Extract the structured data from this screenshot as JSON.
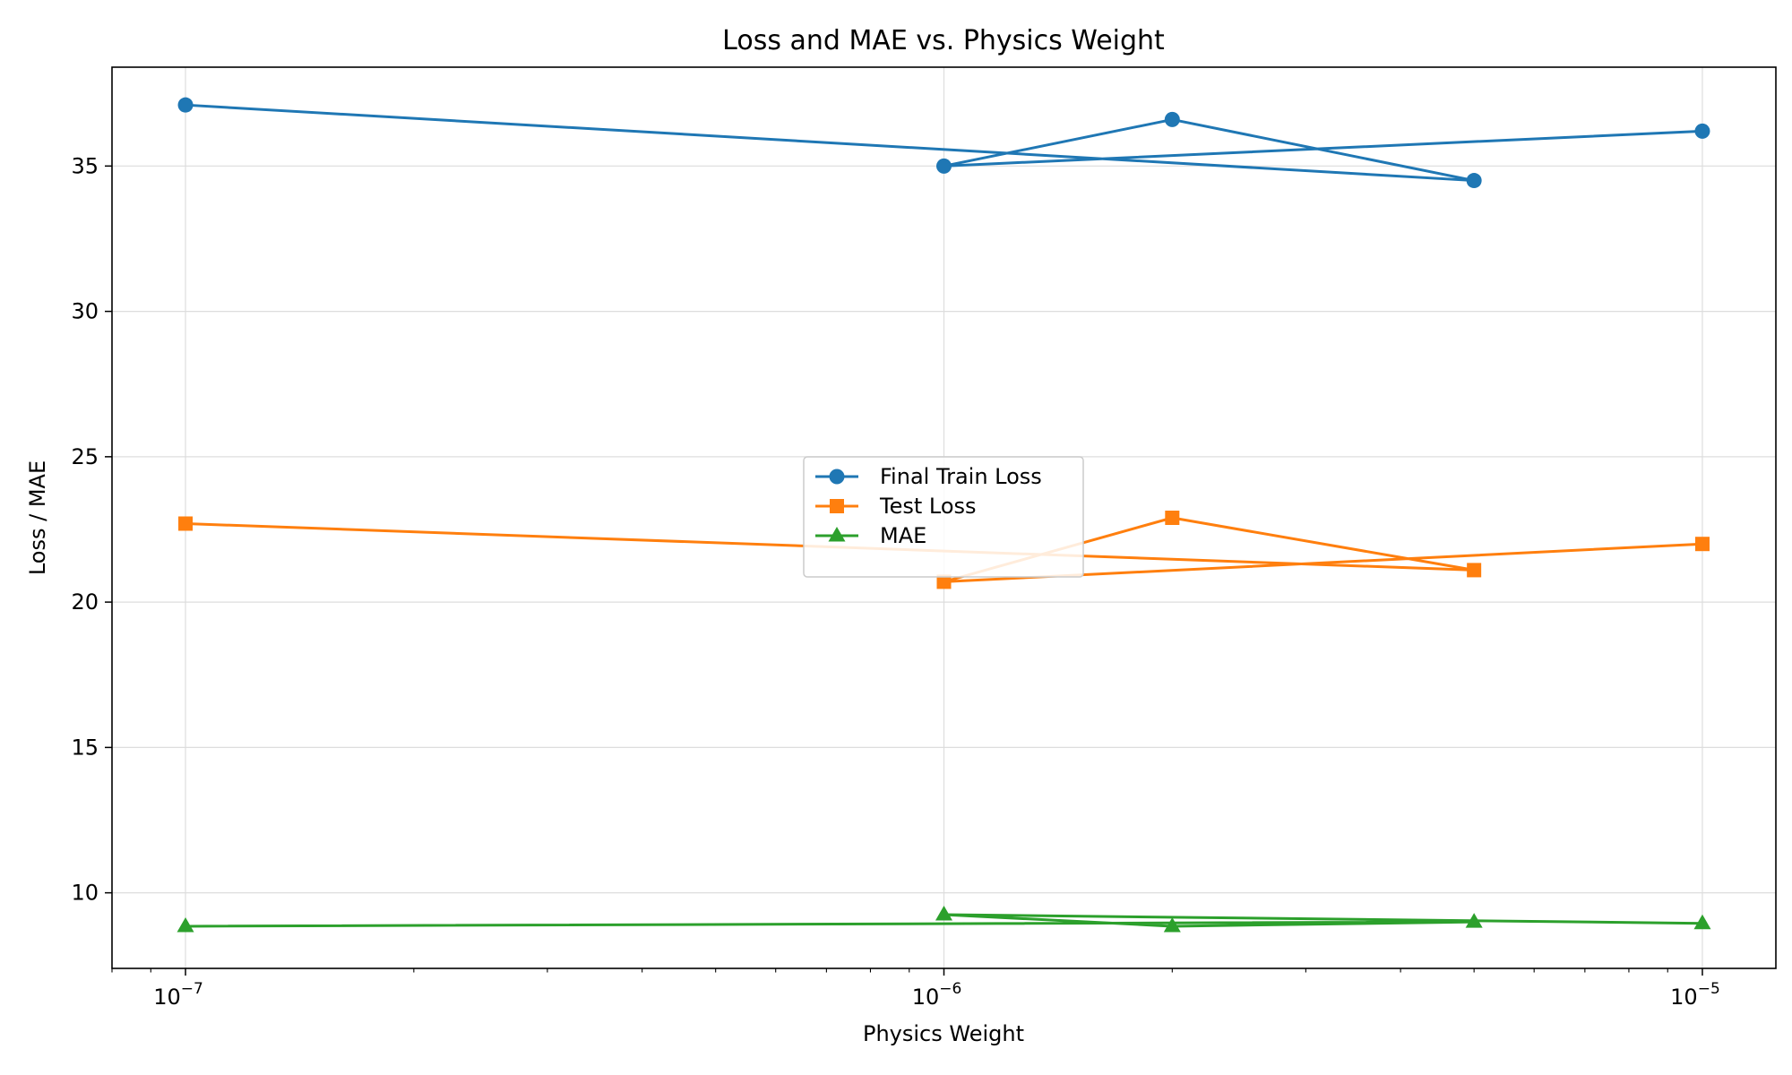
{
  "chart_data": {
    "type": "line",
    "title": "Loss and MAE vs. Physics Weight",
    "xlabel": "Physics Weight",
    "ylabel": "Loss / MAE",
    "xscale": "log",
    "xlim": [
      8e-08,
      1.25e-05
    ],
    "ylim": [
      7.4,
      38.4
    ],
    "grid": true,
    "legend_position": "center",
    "x": [
      1e-07,
      1e-06,
      2e-06,
      5e-06,
      1e-05
    ],
    "point_order": [
      0,
      3,
      2,
      1,
      4
    ],
    "xticks": [
      {
        "value": 1e-07,
        "base": "10",
        "exp": "−7"
      },
      {
        "value": 1e-06,
        "base": "10",
        "exp": "−6"
      },
      {
        "value": 1e-05,
        "base": "10",
        "exp": "−5"
      }
    ],
    "yticks": [
      {
        "value": 10,
        "label": "10"
      },
      {
        "value": 15,
        "label": "15"
      },
      {
        "value": 20,
        "label": "20"
      },
      {
        "value": 25,
        "label": "25"
      },
      {
        "value": 30,
        "label": "30"
      },
      {
        "value": 35,
        "label": "35"
      }
    ],
    "series": [
      {
        "name": "Final Train Loss",
        "color": "#1f77b4",
        "marker": "circle",
        "values": [
          37.1,
          35.0,
          36.6,
          34.5,
          36.2
        ]
      },
      {
        "name": "Test Loss",
        "color": "#ff7f0e",
        "marker": "square",
        "values": [
          22.7,
          20.7,
          22.9,
          21.1,
          22.0
        ]
      },
      {
        "name": "MAE",
        "color": "#2ca02c",
        "marker": "triangle",
        "values": [
          8.85,
          9.25,
          8.85,
          9.0,
          8.95
        ]
      }
    ]
  }
}
